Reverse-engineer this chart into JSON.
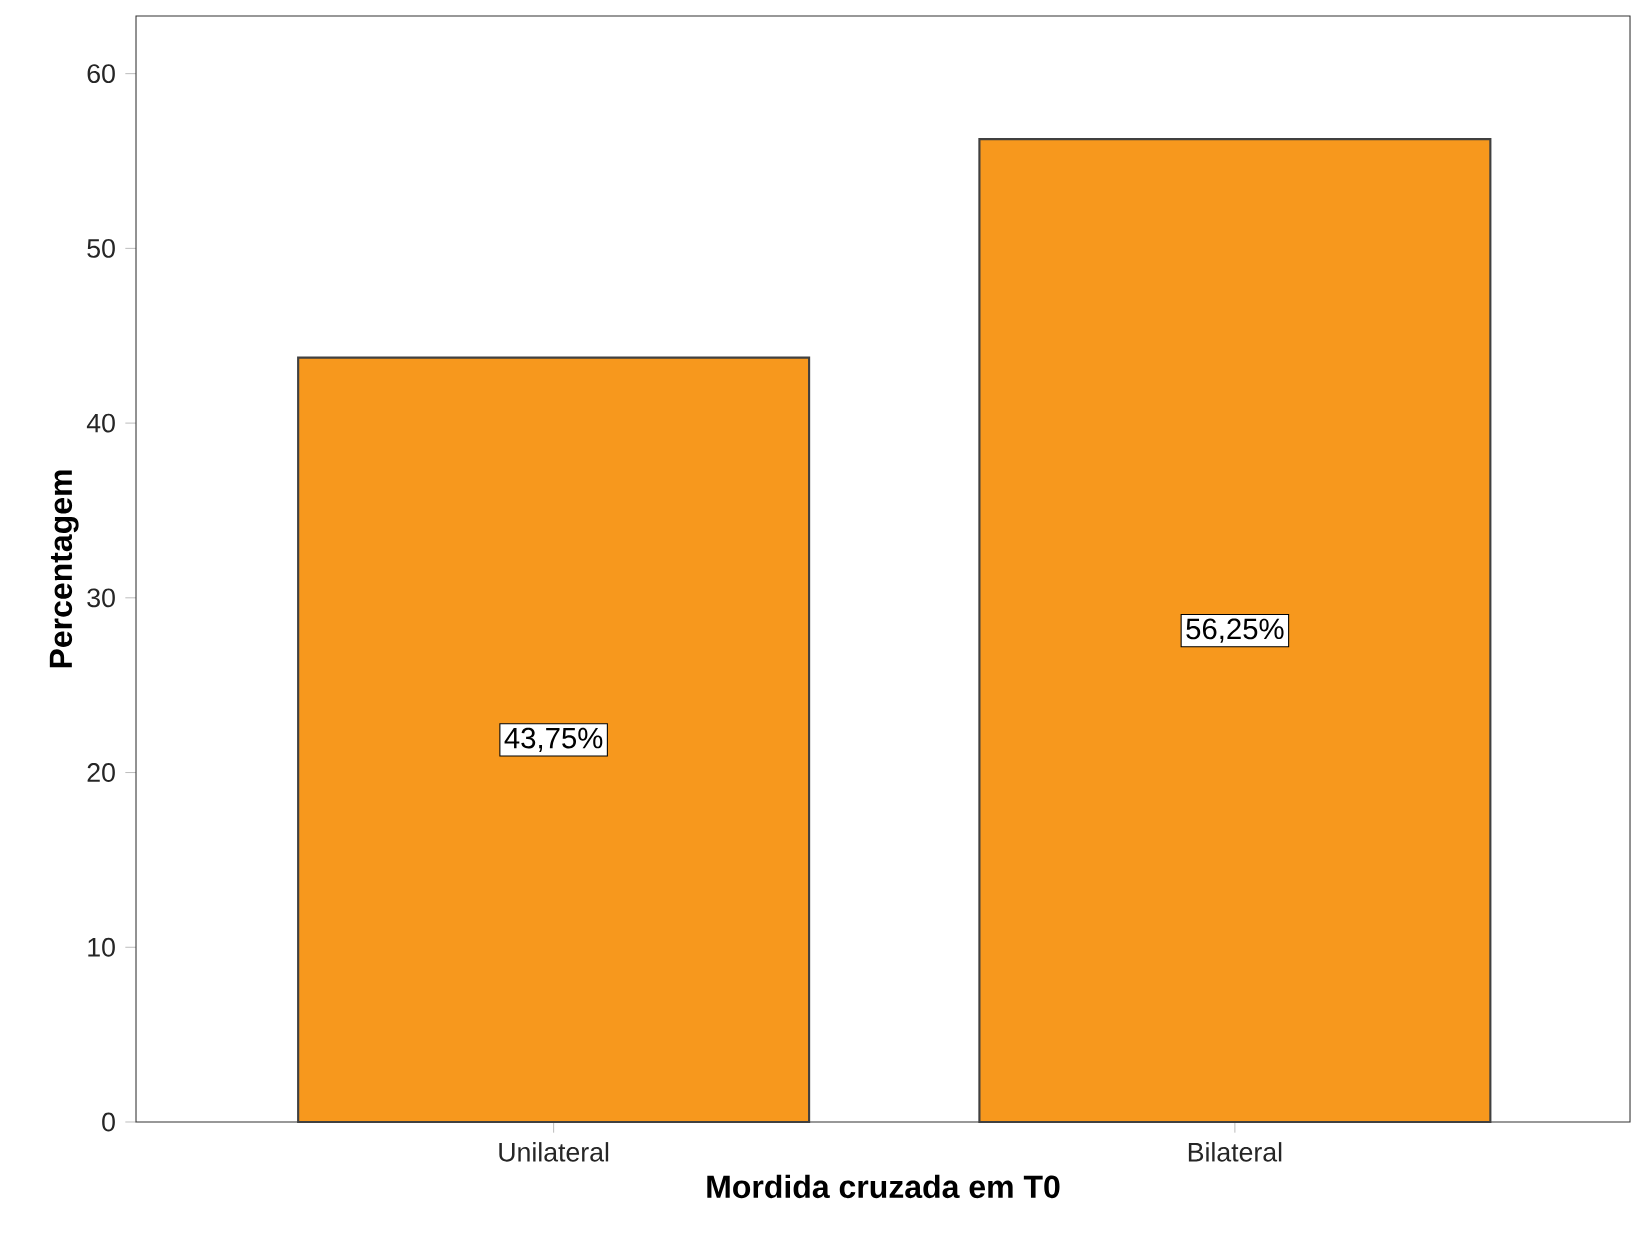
{
  "chart_data": {
    "type": "bar",
    "xlabel": "Mordida cruzada em T0",
    "ylabel": "Percentagem",
    "categories": [
      "Unilateral",
      "Bilateral"
    ],
    "values": [
      43.75,
      56.25
    ],
    "value_labels": [
      "43,75%",
      "56,25%"
    ],
    "color": "#f7981d",
    "ylim": [
      0,
      63.3
    ],
    "yticks": [
      0,
      10,
      20,
      30,
      40,
      50,
      60
    ]
  }
}
